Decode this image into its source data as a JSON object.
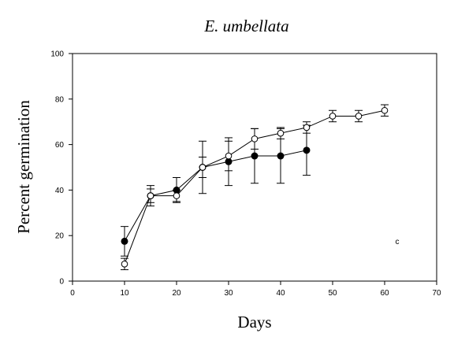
{
  "chart_data": {
    "type": "line",
    "title": "E. umbellata",
    "xlabel": "Days",
    "ylabel": "Percent germination",
    "xlim": [
      0,
      70
    ],
    "ylim": [
      0,
      100
    ],
    "xticks": [
      0,
      10,
      20,
      30,
      40,
      50,
      60,
      70
    ],
    "yticks": [
      0,
      20,
      40,
      60,
      80,
      100
    ],
    "grid": false,
    "annotation": "c",
    "series": [
      {
        "marker": "filled-circle",
        "points": [
          {
            "x": 10,
            "y": 17.5,
            "err": 6.5
          },
          {
            "x": 15,
            "y": 37.5,
            "err": 4.5
          },
          {
            "x": 20,
            "y": 40,
            "err": 5.5
          },
          {
            "x": 25,
            "y": 50,
            "err": 11.5
          },
          {
            "x": 30,
            "y": 52.5,
            "err": 10.5
          },
          {
            "x": 35,
            "y": 55,
            "err": 12
          },
          {
            "x": 40,
            "y": 55,
            "err": 12
          },
          {
            "x": 45,
            "y": 57.5,
            "err": 11
          }
        ]
      },
      {
        "marker": "open-circle",
        "points": [
          {
            "x": 10,
            "y": 7.5,
            "err": 2.5
          },
          {
            "x": 15,
            "y": 37.5,
            "err": 3
          },
          {
            "x": 20,
            "y": 37.5,
            "err": 2.5
          },
          {
            "x": 25,
            "y": 50,
            "err": 4.5
          },
          {
            "x": 30,
            "y": 55,
            "err": 6.5
          },
          {
            "x": 35,
            "y": 62.5,
            "err": 4.5
          },
          {
            "x": 40,
            "y": 65,
            "err": 2.5
          },
          {
            "x": 45,
            "y": 67.5,
            "err": 2.5
          },
          {
            "x": 50,
            "y": 72.5,
            "err": 2.5
          },
          {
            "x": 55,
            "y": 72.5,
            "err": 2.5
          },
          {
            "x": 60,
            "y": 75,
            "err": 2.5
          }
        ]
      }
    ]
  }
}
